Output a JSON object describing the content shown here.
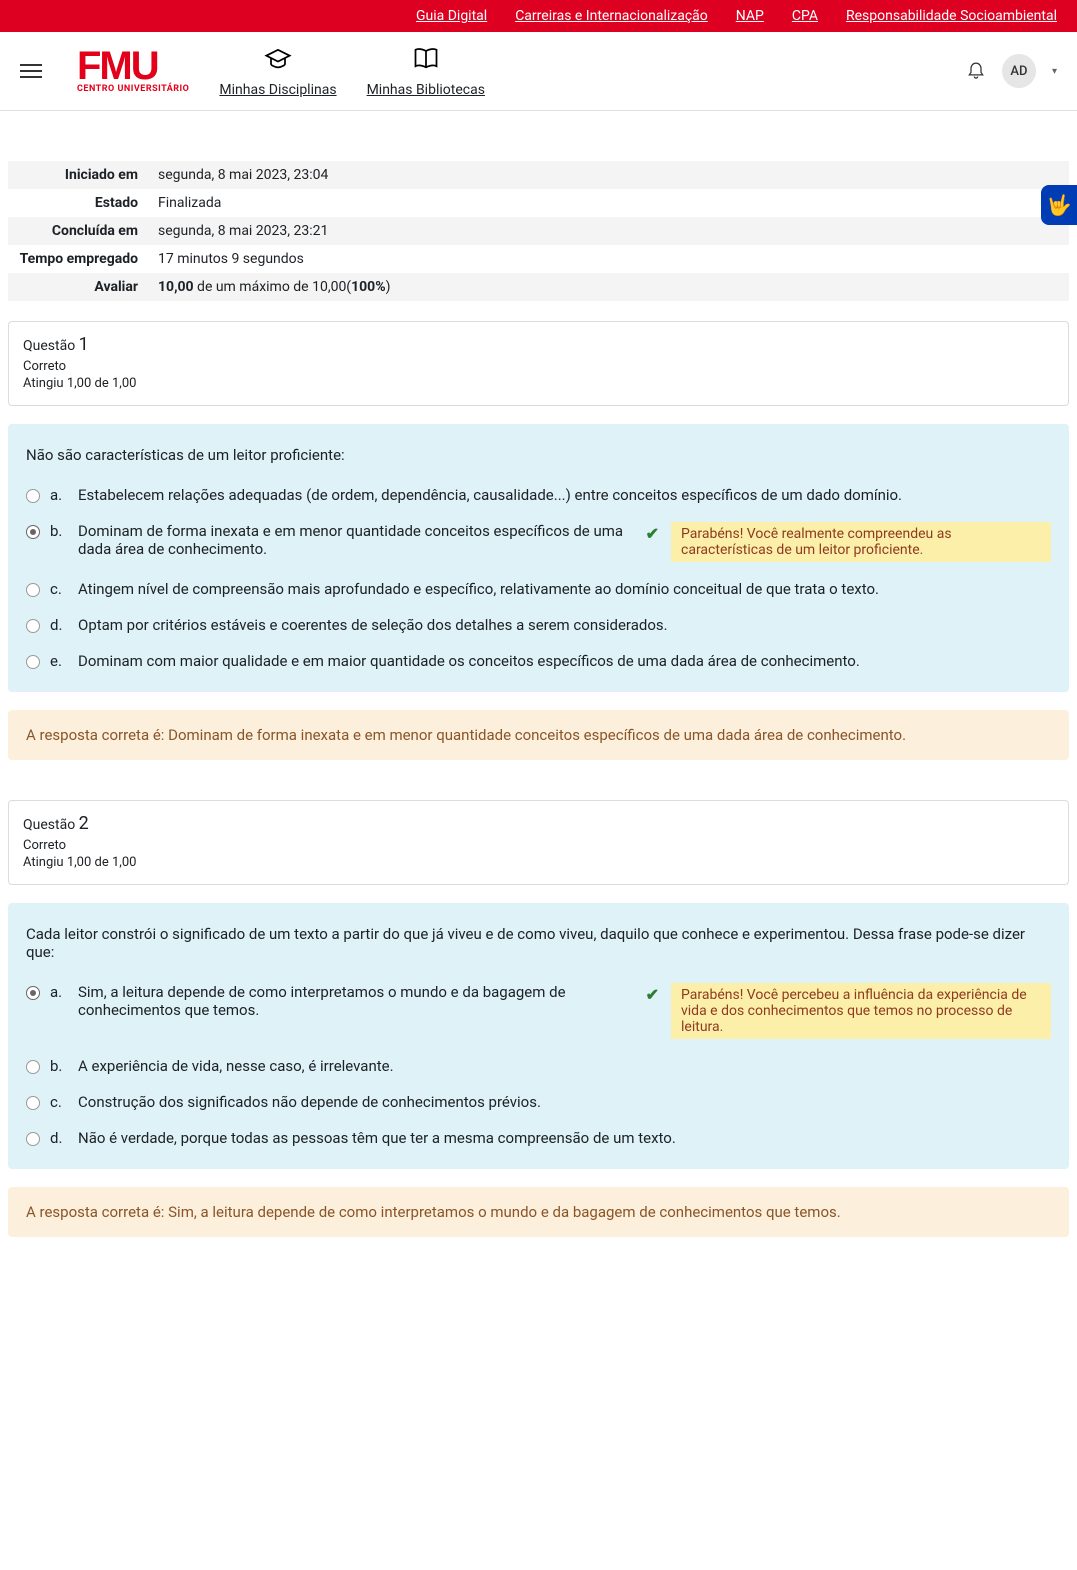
{
  "colors": {
    "brand_red": "#e2001a",
    "topbar_bg": "#dd0020",
    "question_bg": "#def2f8",
    "feedback_bg": "#fcefa9",
    "feedback_text": "#8e3b1f",
    "correct_bg": "#fcefdc",
    "correct_text": "#8a5527",
    "a11y_bg": "#003cb3"
  },
  "topbar": {
    "links": [
      "Guia Digital",
      "Carreiras e Internacionalização",
      "NAP",
      "CPA",
      "Responsabilidade Socioambiental"
    ]
  },
  "header": {
    "logo_main": "FMU",
    "logo_sub": "CENTRO UNIVERSITÁRIO",
    "nav": [
      {
        "label": "Minhas Disciplinas",
        "icon": "grad-cap"
      },
      {
        "label": "Minhas Bibliotecas",
        "icon": "book"
      }
    ],
    "user_initials": "AD"
  },
  "summary": {
    "rows": [
      {
        "label": "Iniciado em",
        "value": "segunda, 8 mai 2023, 23:04"
      },
      {
        "label": "Estado",
        "value": "Finalizada"
      },
      {
        "label": "Concluída em",
        "value": "segunda, 8 mai 2023, 23:21"
      },
      {
        "label": "Tempo empregado",
        "value": "17 minutos 9 segundos"
      }
    ],
    "grade_label": "Avaliar",
    "grade_bold1": "10,00",
    "grade_mid": " de um máximo de 10,00(",
    "grade_bold2": "100%",
    "grade_end": ")"
  },
  "questions": [
    {
      "title_prefix": "Questão ",
      "number": "1",
      "status": "Correto",
      "grade_text": "Atingiu 1,00 de 1,00",
      "prompt": "Não são características de um leitor proficiente:",
      "options": [
        {
          "letter": "a.",
          "text": "Estabelecem relações adequadas (de ordem, dependência, causalidade...) entre conceitos específicos de um dado domínio.",
          "selected": false,
          "correct": false
        },
        {
          "letter": "b.",
          "text": "Dominam de forma inexata e em menor quantidade conceitos específicos de uma dada área de conhecimento.",
          "selected": true,
          "correct": true,
          "feedback": "Parabéns! Você realmente compreendeu as características de um leitor proficiente."
        },
        {
          "letter": "c.",
          "text": "Atingem nível de compreensão mais aprofundado e específico, relativamente ao domínio conceitual de que trata o texto.",
          "selected": false,
          "correct": false
        },
        {
          "letter": "d.",
          "text": "Optam por critérios estáveis e coerentes de seleção dos detalhes a serem considerados.",
          "selected": false,
          "correct": false
        },
        {
          "letter": "e.",
          "text": "Dominam com maior qualidade e em maior quantidade os conceitos específicos de uma dada área de conhecimento.",
          "selected": false,
          "correct": false
        }
      ],
      "correct_answer": "A resposta correta é: Dominam de forma inexata e em menor quantidade conceitos específicos de uma dada área de conhecimento."
    },
    {
      "title_prefix": "Questão ",
      "number": "2",
      "status": "Correto",
      "grade_text": "Atingiu 1,00 de 1,00",
      "prompt": "Cada leitor constrói o significado de um texto a partir do que já viveu e de como viveu, daquilo que conhece e experimentou. Dessa frase pode-se dizer que:",
      "options": [
        {
          "letter": "a.",
          "text": "Sim, a leitura depende de como interpretamos o mundo e da bagagem de conhecimentos que temos.",
          "selected": true,
          "correct": true,
          "feedback": "Parabéns! Você percebeu a influência da experiência de vida e dos conhecimentos que temos no processo de leitura."
        },
        {
          "letter": "b.",
          "text": "A experiência de vida, nesse caso, é irrelevante.",
          "selected": false,
          "correct": false
        },
        {
          "letter": "c.",
          "text": "Construção dos significados não depende de conhecimentos prévios.",
          "selected": false,
          "correct": false
        },
        {
          "letter": "d.",
          "text": "Não é verdade, porque todas as pessoas têm que ter a mesma compreensão de um texto.",
          "selected": false,
          "correct": false
        }
      ],
      "correct_answer": "A resposta correta é: Sim, a leitura depende de como interpretamos o mundo e da bagagem de conhecimentos que temos."
    }
  ]
}
